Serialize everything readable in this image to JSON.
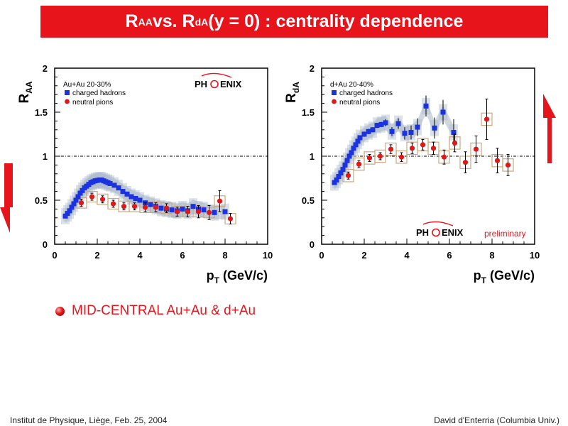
{
  "slide": {
    "title": {
      "r1": "R",
      "s1": "AA",
      "mid": " vs. R",
      "s2": "dA",
      "rest": " (y = 0) : centrality dependence"
    },
    "bullet": "MID-CENTRAL Au+Au & d+Au",
    "footer_left": "Institut de Physique, Liège, Feb. 25, 2004",
    "footer_right": "David d'Enterria (Columbia Univ.)",
    "accent_color": "#e8141c",
    "arrow_left": "down-arrow-icon",
    "arrow_right": "up-arrow-icon"
  },
  "chart_data": [
    {
      "type": "scatter",
      "ylabel": {
        "main": "R",
        "sub": "AA"
      },
      "xlabel": {
        "main": "p",
        "sub": "T",
        "rest": " (GeV/c)"
      },
      "xlim": [
        0,
        10
      ],
      "ylim": [
        0,
        2
      ],
      "xticks": [
        "0",
        "2",
        "4",
        "6",
        "8",
        "10"
      ],
      "yticks": [
        "0",
        "0.5",
        "1",
        "1.5",
        "2"
      ],
      "reference_line": 1,
      "legend_title": "Au+Au 20-30%",
      "logo_text": {
        "a": "PH",
        "b": "ENIX"
      },
      "series": [
        {
          "name": "charged hadrons",
          "marker": "square",
          "color": "#1a32e0",
          "points": [
            [
              0.5,
              0.32
            ],
            [
              0.6,
              0.35
            ],
            [
              0.7,
              0.38
            ],
            [
              0.8,
              0.42
            ],
            [
              0.9,
              0.46
            ],
            [
              1.0,
              0.5
            ],
            [
              1.1,
              0.54
            ],
            [
              1.2,
              0.58
            ],
            [
              1.3,
              0.61
            ],
            [
              1.4,
              0.64
            ],
            [
              1.5,
              0.66
            ],
            [
              1.6,
              0.68
            ],
            [
              1.7,
              0.7
            ],
            [
              1.8,
              0.71
            ],
            [
              1.9,
              0.72
            ],
            [
              2.0,
              0.725
            ],
            [
              2.1,
              0.73
            ],
            [
              2.2,
              0.73
            ],
            [
              2.3,
              0.72
            ],
            [
              2.4,
              0.71
            ],
            [
              2.5,
              0.7
            ],
            [
              2.6,
              0.69
            ],
            [
              2.8,
              0.67
            ],
            [
              3.0,
              0.64
            ],
            [
              3.2,
              0.6
            ],
            [
              3.4,
              0.57
            ],
            [
              3.6,
              0.54
            ],
            [
              3.8,
              0.52
            ],
            [
              4.0,
              0.5
            ],
            [
              4.25,
              0.47
            ],
            [
              4.5,
              0.45
            ],
            [
              4.75,
              0.43
            ],
            [
              5.0,
              0.41
            ],
            [
              5.25,
              0.4
            ],
            [
              5.5,
              0.39
            ],
            [
              5.75,
              0.38
            ],
            [
              6.0,
              0.4
            ],
            [
              6.25,
              0.38
            ],
            [
              6.5,
              0.43
            ],
            [
              6.75,
              0.4
            ],
            [
              7.0,
              0.39
            ],
            [
              7.5,
              0.36
            ],
            [
              8.0,
              0.37
            ]
          ],
          "band": 0.08
        },
        {
          "name": "neutral pions",
          "marker": "circle",
          "color": "#e01818",
          "points": [
            [
              1.25,
              0.47
            ],
            [
              1.75,
              0.54
            ],
            [
              2.25,
              0.51
            ],
            [
              2.75,
              0.46
            ],
            [
              3.25,
              0.43
            ],
            [
              3.75,
              0.43
            ],
            [
              4.25,
              0.42
            ],
            [
              4.75,
              0.42
            ],
            [
              5.25,
              0.41
            ],
            [
              5.75,
              0.37
            ],
            [
              6.25,
              0.37
            ],
            [
              6.75,
              0.37
            ],
            [
              7.25,
              0.36
            ],
            [
              7.75,
              0.49
            ],
            [
              8.25,
              0.29
            ]
          ],
          "errors": [
            0.04,
            0.04,
            0.04,
            0.04,
            0.04,
            0.04,
            0.05,
            0.05,
            0.05,
            0.05,
            0.06,
            0.07,
            0.08,
            0.12,
            0.06
          ],
          "sys": 0.06
        }
      ]
    },
    {
      "type": "scatter",
      "ylabel": {
        "main": "R",
        "sub": "dA"
      },
      "xlabel": {
        "main": "p",
        "sub": "T",
        "rest": " (GeV/c)"
      },
      "xlim": [
        0,
        10
      ],
      "ylim": [
        0,
        2
      ],
      "xticks": [
        "0",
        "2",
        "4",
        "6",
        "8",
        "10"
      ],
      "yticks": [
        "0",
        "0.5",
        "1",
        "1.5",
        "2"
      ],
      "reference_line": 1,
      "legend_title": "d+Au 20-40%",
      "logo_text": {
        "a": "PH",
        "b": "ENIX"
      },
      "preliminary": "preliminary",
      "series": [
        {
          "name": "charged hadrons",
          "marker": "square",
          "color": "#1a32e0",
          "points": [
            [
              0.6,
              0.7
            ],
            [
              0.7,
              0.73
            ],
            [
              0.8,
              0.77
            ],
            [
              0.9,
              0.81
            ],
            [
              1.0,
              0.85
            ],
            [
              1.1,
              0.9
            ],
            [
              1.2,
              0.95
            ],
            [
              1.3,
              1.0
            ],
            [
              1.4,
              1.04
            ],
            [
              1.5,
              1.09
            ],
            [
              1.6,
              1.13
            ],
            [
              1.7,
              1.17
            ],
            [
              1.8,
              1.21
            ],
            [
              2.0,
              1.25
            ],
            [
              2.2,
              1.28
            ],
            [
              2.4,
              1.3
            ],
            [
              2.6,
              1.35
            ],
            [
              2.8,
              1.36
            ],
            [
              3.0,
              1.38
            ],
            [
              3.3,
              1.28
            ],
            [
              3.6,
              1.37
            ],
            [
              3.9,
              1.26
            ],
            [
              4.2,
              1.27
            ],
            [
              4.5,
              1.33
            ],
            [
              4.9,
              1.57
            ],
            [
              5.3,
              1.32
            ],
            [
              5.7,
              1.5
            ],
            [
              6.2,
              1.27
            ]
          ],
          "errors": [
            0.02,
            0.02,
            0.02,
            0.02,
            0.02,
            0.02,
            0.02,
            0.02,
            0.02,
            0.02,
            0.02,
            0.02,
            0.02,
            0.03,
            0.03,
            0.03,
            0.03,
            0.03,
            0.04,
            0.05,
            0.06,
            0.07,
            0.08,
            0.1,
            0.12,
            0.12,
            0.14,
            0.15
          ],
          "band": 0.08
        },
        {
          "name": "neutral pions",
          "marker": "circle",
          "color": "#e01818",
          "points": [
            [
              1.25,
              0.78
            ],
            [
              1.75,
              0.91
            ],
            [
              2.25,
              0.98
            ],
            [
              2.75,
              1.0
            ],
            [
              3.25,
              1.08
            ],
            [
              3.75,
              0.99
            ],
            [
              4.25,
              1.09
            ],
            [
              4.75,
              1.13
            ],
            [
              5.25,
              1.09
            ],
            [
              5.75,
              0.99
            ],
            [
              6.25,
              1.15
            ],
            [
              6.75,
              0.93
            ],
            [
              7.25,
              1.08
            ],
            [
              7.75,
              1.42
            ],
            [
              8.25,
              0.95
            ],
            [
              8.75,
              0.9
            ]
          ],
          "errors": [
            0.04,
            0.04,
            0.04,
            0.04,
            0.05,
            0.05,
            0.06,
            0.06,
            0.07,
            0.08,
            0.1,
            0.12,
            0.15,
            0.23,
            0.14,
            0.12
          ],
          "sys": 0.07
        }
      ]
    }
  ]
}
